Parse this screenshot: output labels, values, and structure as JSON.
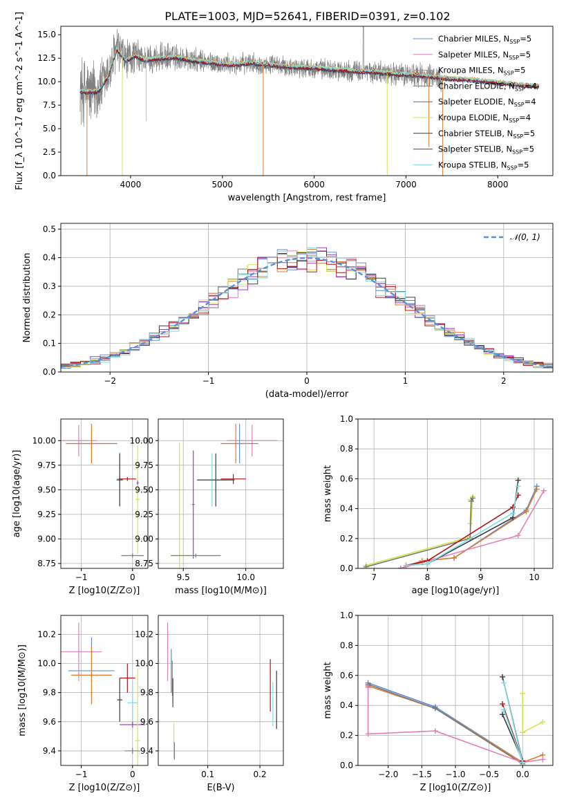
{
  "figure_title": "PLATE=1003, MJD=52641, FIBERID=0391, z=0.102",
  "colors": {
    "Chabrier MILES": "#5b8fd6",
    "Salpeter MILES": "#e07fb8",
    "Kroupa MILES": "#e07b2e",
    "Chabrier ELODIE": "#7a7a7a",
    "Salpeter ELODIE": "#9b3fbf",
    "Kroupa ELODIE": "#d7e34d",
    "Chabrier STELIB": "#3a3a3a",
    "Salpeter STELIB": "#b3141a",
    "Kroupa STELIB": "#7fdde6",
    "normal": "#5b8fd6",
    "data": "#808080"
  },
  "chart_data": [
    {
      "id": "spectrum",
      "type": "line",
      "title": "PLATE=1003, MJD=52641, FIBERID=0391, z=0.102",
      "xlabel": "wavelength [Angstrom, rest frame]",
      "ylabel": "Flux [f_λ 10^-17 erg cm^-2 s^-1 A^-1]",
      "xlim": [
        3240,
        8600
      ],
      "ylim": [
        0,
        15.9
      ],
      "xticks": [
        4000,
        5000,
        6000,
        7000,
        8000
      ],
      "yticks": [
        0.0,
        2.5,
        5.0,
        7.5,
        10.0,
        12.5,
        15.0
      ],
      "grid": false,
      "legend_position": "top-right",
      "legend": [
        "Chabrier MILES, N_SSP=5",
        "Salpeter MILES, N_SSP=5",
        "Kroupa MILES, N_SSP=5",
        "Chabrier ELODIE, N_SSP=4",
        "Salpeter ELODIE, N_SSP=4",
        "Kroupa ELODIE, N_SSP=4",
        "Chabrier STELIB, N_SSP=5",
        "Salpeter STELIB, N_SSP=5",
        "Kroupa STELIB, N_SSP=5"
      ],
      "model_continuum": {
        "x": [
          3450,
          3550,
          3650,
          3750,
          3850,
          3950,
          4050,
          4150,
          4300,
          4500,
          4700,
          4900,
          5100,
          5300,
          5500,
          5700,
          5900,
          6100,
          6300,
          6500,
          6700,
          6900,
          7100,
          7300,
          7500,
          7700,
          7900,
          8100,
          8300,
          8450
        ],
        "y": [
          9.0,
          8.9,
          9.0,
          10.5,
          13.5,
          12.2,
          12.8,
          12.3,
          12.5,
          12.6,
          12.2,
          12.0,
          11.8,
          12.0,
          11.8,
          11.6,
          11.5,
          11.4,
          11.2,
          11.1,
          11.0,
          10.8,
          10.7,
          10.5,
          10.3,
          10.2,
          10.0,
          9.8,
          9.6,
          9.5
        ]
      },
      "absorption_spikes": [
        {
          "x": 3525,
          "y": 0.0,
          "color": "Kroupa MILES"
        },
        {
          "x": 3910,
          "y": 0.0,
          "color": "Kroupa ELODIE"
        },
        {
          "x": 4170,
          "y": 5.8,
          "color": "Kroupa STELIB"
        },
        {
          "x": 5445,
          "y": 0.0,
          "color": "Kroupa MILES"
        },
        {
          "x": 6795,
          "y": 0.0,
          "color": "Kroupa ELODIE"
        },
        {
          "x": 7250,
          "y": 3.0,
          "color": "Kroupa MILES"
        },
        {
          "x": 7400,
          "y": 0.0,
          "color": "Kroupa MILES"
        }
      ],
      "data_noise_amplitude": [
        {
          "x": 3450,
          "amp": 4.5
        },
        {
          "x": 4100,
          "amp": 2.0
        },
        {
          "x": 5000,
          "amp": 1.3
        },
        {
          "x": 6000,
          "amp": 1.2
        },
        {
          "x": 7000,
          "amp": 1.5
        },
        {
          "x": 7400,
          "amp": 1.6
        }
      ],
      "data_xrange": [
        3450,
        7400
      ],
      "data_peak": {
        "x": 6535,
        "y": 15.9
      }
    },
    {
      "id": "residuals",
      "type": "line",
      "xlabel": "(data-model)/error",
      "ylabel": "Normed distribution",
      "xlim": [
        -2.5,
        2.5
      ],
      "ylim": [
        0,
        0.52
      ],
      "xticks": [
        -2,
        -1,
        0,
        1,
        2
      ],
      "yticks": [
        0.0,
        0.1,
        0.2,
        0.3,
        0.4,
        0.5
      ],
      "grid": true,
      "legend_position": "top-right",
      "legend": [
        "𝒩(0, 1)"
      ],
      "bin_width": 0.1,
      "perturbation_seeds": [
        3,
        7,
        11,
        13,
        17,
        19,
        23,
        29,
        31
      ]
    },
    {
      "id": "age_vs_Z",
      "type": "scatter",
      "xlabel": "Z [log10(Z/Z⊙)]",
      "ylabel": "age [log10(age/yr)]",
      "xlim": [
        -1.4,
        0.3
      ],
      "ylim": [
        8.7,
        10.22
      ],
      "xticks": [
        -1,
        0
      ],
      "yticks": [
        8.75,
        9.0,
        9.25,
        9.5,
        9.75,
        10.0
      ],
      "grid": true,
      "points": [
        {
          "series": "Salpeter MILES",
          "x": -1.05,
          "y": 10.0,
          "xerr": 0.35,
          "yerr": 0.16
        },
        {
          "series": "Chabrier MILES",
          "x": -0.8,
          "y": 9.97,
          "xerr": 0.5,
          "yerr": 0.2
        },
        {
          "series": "Kroupa MILES",
          "x": -0.8,
          "y": 9.97,
          "xerr": 0.5,
          "yerr": 0.2
        },
        {
          "series": "Kroupa STELIB",
          "x": -0.25,
          "y": 9.61,
          "xerr": 0.06,
          "yerr": 0.27
        },
        {
          "series": "Chabrier STELIB",
          "x": -0.25,
          "y": 9.6,
          "xerr": 0.06,
          "yerr": 0.27
        },
        {
          "series": "Salpeter STELIB",
          "x": -0.1,
          "y": 9.61,
          "xerr": 0.17,
          "yerr": 0.02
        },
        {
          "series": "Kroupa ELODIE",
          "x": 0.1,
          "y": 9.4,
          "xerr": 0.04,
          "yerr": 0.55
        },
        {
          "series": "Chabrier ELODIE",
          "x": 0.0,
          "y": 8.83,
          "xerr": 0.22,
          "yerr": 0.02
        },
        {
          "series": "Salpeter ELODIE",
          "x": 0.1,
          "y": 9.57,
          "xerr": 0.02,
          "yerr": 0.02
        }
      ]
    },
    {
      "id": "age_vs_mass",
      "type": "scatter",
      "xlabel": "mass [log10(M/M⊙)]",
      "ylabel": "",
      "xlim": [
        9.3,
        10.3
      ],
      "ylim": [
        8.7,
        10.22
      ],
      "xticks": [
        9.5,
        10.0
      ],
      "yticks": [
        8.75,
        9.0,
        9.25,
        9.5,
        9.75,
        10.0
      ],
      "grid": true,
      "points": [
        {
          "series": "Salpeter MILES",
          "x": 10.05,
          "y": 10.0,
          "xerr": 0.2,
          "yerr": 0.16
        },
        {
          "series": "Chabrier MILES",
          "x": 9.95,
          "y": 9.97,
          "xerr": 0.15,
          "yerr": 0.2
        },
        {
          "series": "Kroupa MILES",
          "x": 9.92,
          "y": 9.97,
          "xerr": 0.12,
          "yerr": 0.2
        },
        {
          "series": "Kroupa STELIB",
          "x": 9.73,
          "y": 9.6,
          "xerr": 0.1,
          "yerr": 0.27
        },
        {
          "series": "Chabrier STELIB",
          "x": 9.76,
          "y": 9.6,
          "xerr": 0.15,
          "yerr": 0.27
        },
        {
          "series": "Salpeter STELIB",
          "x": 9.9,
          "y": 9.61,
          "xerr": 0.1,
          "yerr": 0.05
        },
        {
          "series": "Kroupa ELODIE",
          "x": 9.47,
          "y": 8.83,
          "xerr": 0.07,
          "yerr": 1.15
        },
        {
          "series": "Chabrier ELODIE",
          "x": 9.6,
          "y": 8.83,
          "xerr": 0.2,
          "yerr": 0.02
        },
        {
          "series": "Salpeter ELODIE",
          "x": 9.58,
          "y": 9.35,
          "xerr": 0.01,
          "yerr": 0.55
        }
      ]
    },
    {
      "id": "weight_vs_age",
      "type": "line",
      "xlabel": "age [log10(age/yr)]",
      "ylabel": "mass weight",
      "xlim": [
        6.7,
        10.35
      ],
      "ylim": [
        0,
        1.0
      ],
      "xticks": [
        7,
        8,
        9,
        10
      ],
      "yticks": [
        0.0,
        0.2,
        0.4,
        0.6,
        0.8,
        1.0
      ],
      "grid": true,
      "series": [
        {
          "name": "Kroupa ELODIE",
          "x": [
            6.85,
            8.8,
            8.85,
            8.82,
            8.8
          ],
          "y": [
            0.02,
            0.21,
            0.48,
            0.46,
            0.3
          ]
        },
        {
          "name": "Chabrier ELODIE",
          "x": [
            6.85,
            8.8,
            8.82,
            8.85
          ],
          "y": [
            0.01,
            0.2,
            0.45,
            0.47
          ]
        },
        {
          "name": "Chabrier MILES",
          "x": [
            7.5,
            7.9,
            8.5,
            9.85,
            10.05
          ],
          "y": [
            0.0,
            0.05,
            0.07,
            0.39,
            0.55
          ]
        },
        {
          "name": "Kroupa MILES",
          "x": [
            7.5,
            7.9,
            8.5,
            9.85,
            10.05
          ],
          "y": [
            0.0,
            0.05,
            0.07,
            0.38,
            0.53
          ]
        },
        {
          "name": "Salpeter MILES",
          "x": [
            7.5,
            7.9,
            8.0,
            9.7,
            10.18
          ],
          "y": [
            0.0,
            0.04,
            0.05,
            0.22,
            0.52
          ]
        },
        {
          "name": "Chabrier STELIB",
          "x": [
            7.6,
            8.0,
            9.6,
            9.7
          ],
          "y": [
            0.02,
            0.03,
            0.34,
            0.59
          ]
        },
        {
          "name": "Salpeter STELIB",
          "x": [
            7.6,
            8.0,
            9.6,
            9.7
          ],
          "y": [
            0.02,
            0.05,
            0.41,
            0.49
          ]
        },
        {
          "name": "Kroupa STELIB",
          "x": [
            7.6,
            8.0,
            9.6,
            9.7
          ],
          "y": [
            0.02,
            0.03,
            0.37,
            0.55
          ]
        }
      ]
    },
    {
      "id": "mass_vs_Z",
      "type": "scatter",
      "xlabel": "Z [log10(Z/Z⊙)]",
      "ylabel": "mass [log10(M/M⊙)]",
      "xlim": [
        -1.4,
        0.3
      ],
      "ylim": [
        9.3,
        10.33
      ],
      "xticks": [
        -1,
        0
      ],
      "yticks": [
        9.4,
        9.6,
        9.8,
        10.0,
        10.2
      ],
      "grid": true,
      "points": [
        {
          "series": "Salpeter MILES",
          "x": -1.05,
          "y": 10.08,
          "xerr": 0.45,
          "yerr": 0.2
        },
        {
          "series": "Chabrier MILES",
          "x": -0.8,
          "y": 9.95,
          "xerr": 0.45,
          "yerr": 0.23
        },
        {
          "series": "Kroupa MILES",
          "x": -0.8,
          "y": 9.92,
          "xerr": 0.4,
          "yerr": 0.2
        },
        {
          "series": "Salpeter STELIB",
          "x": -0.1,
          "y": 9.9,
          "xerr": 0.15,
          "yerr": 0.1
        },
        {
          "series": "Chabrier STELIB",
          "x": -0.25,
          "y": 9.75,
          "xerr": 0.05,
          "yerr": 0.15
        },
        {
          "series": "Kroupa STELIB",
          "x": 0.0,
          "y": 9.73,
          "xerr": 0.1,
          "yerr": 0.15
        },
        {
          "series": "Salpeter ELODIE",
          "x": 0.0,
          "y": 9.58,
          "xerr": 0.25,
          "yerr": 0.02
        },
        {
          "series": "Kroupa ELODIE",
          "x": 0.1,
          "y": 9.47,
          "xerr": 0.05,
          "yerr": 0.5
        },
        {
          "series": "Chabrier ELODIE",
          "x": 0.0,
          "y": 9.4,
          "xerr": 0.15,
          "yerr": 0.02
        }
      ]
    },
    {
      "id": "mass_vs_ebv",
      "type": "scatter",
      "xlabel": "E(B-V)",
      "ylabel": "",
      "xlim": [
        0.005,
        0.245
      ],
      "ylim": [
        9.3,
        10.33
      ],
      "xticks": [
        0.1,
        0.2
      ],
      "yticks": [
        9.4,
        9.6,
        9.8,
        10.0,
        10.2
      ],
      "grid": true,
      "points": [
        {
          "series": "Salpeter MILES",
          "x": 0.023,
          "y": 10.08,
          "xerr": 0.0,
          "yerr": 0.2
        },
        {
          "series": "Chabrier MILES",
          "x": 0.03,
          "y": 9.95,
          "xerr": 0.0,
          "yerr": 0.15
        },
        {
          "series": "Kroupa MILES",
          "x": 0.032,
          "y": 9.9,
          "xerr": 0.0,
          "yerr": 0.12
        },
        {
          "series": "Chabrier STELIB",
          "x": 0.033,
          "y": 9.8,
          "xerr": 0.0,
          "yerr": 0.1
        },
        {
          "series": "Kroupa ELODIE",
          "x": 0.035,
          "y": 9.47,
          "xerr": 0.0,
          "yerr": 0.12
        },
        {
          "series": "Chabrier ELODIE",
          "x": 0.036,
          "y": 9.4,
          "xerr": 0.0,
          "yerr": 0.06
        },
        {
          "series": "Salpeter STELIB",
          "x": 0.22,
          "y": 9.85,
          "xerr": 0.0,
          "yerr": 0.18
        },
        {
          "series": "Kroupa STELIB",
          "x": 0.225,
          "y": 9.72,
          "xerr": 0.0,
          "yerr": 0.15
        },
        {
          "series": "Chabrier STELIB",
          "x": 0.232,
          "y": 9.75,
          "xerr": 0.0,
          "yerr": 0.2
        }
      ]
    },
    {
      "id": "weight_vs_Z",
      "type": "line",
      "xlabel": "Z [log10(Z/Z⊙)]",
      "ylabel": "mass weight",
      "xlim": [
        -2.45,
        0.45
      ],
      "ylim": [
        0,
        1.0
      ],
      "xticks": [
        -2.0,
        -1.5,
        -1.0,
        -0.5,
        0.0
      ],
      "yticks": [
        0.0,
        0.2,
        0.4,
        0.6,
        0.8,
        1.0
      ],
      "grid": true,
      "series": [
        {
          "name": "Chabrier MILES",
          "x": [
            -2.3,
            -1.3,
            0.0
          ],
          "y": [
            0.55,
            0.39,
            0.02
          ]
        },
        {
          "name": "Kroupa MILES",
          "x": [
            -2.3,
            -1.3,
            0.0,
            0.3
          ],
          "y": [
            0.53,
            0.38,
            0.02,
            0.07
          ]
        },
        {
          "name": "Chabrier ELODIE",
          "x": [
            -2.3,
            -1.3,
            0.0
          ],
          "y": [
            0.54,
            0.38,
            0.01
          ]
        },
        {
          "name": "Salpeter MILES",
          "x": [
            -2.3,
            -2.3,
            -1.3,
            0.0,
            0.3
          ],
          "y": [
            0.52,
            0.21,
            0.23,
            0.02,
            0.04
          ]
        },
        {
          "name": "Kroupa ELODIE",
          "x": [
            0.0,
            0.0,
            0.3
          ],
          "y": [
            0.48,
            0.22,
            0.29
          ]
        },
        {
          "name": "Chabrier STELIB",
          "x": [
            -0.3,
            0.0,
            -0.3
          ],
          "y": [
            0.59,
            0.03,
            0.34
          ]
        },
        {
          "name": "Salpeter STELIB",
          "x": [
            -0.3,
            0.0
          ],
          "y": [
            0.41,
            0.03
          ]
        },
        {
          "name": "Kroupa STELIB",
          "x": [
            -0.28,
            0.0,
            -0.28
          ],
          "y": [
            0.55,
            0.02,
            0.37
          ]
        }
      ]
    }
  ]
}
